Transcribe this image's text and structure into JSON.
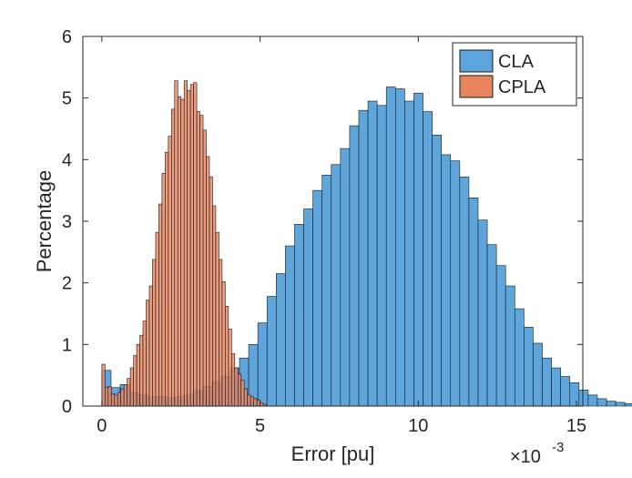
{
  "chart_data": {
    "type": "bar",
    "title": "",
    "xlabel": "Error [pu]",
    "ylabel": "Percentage",
    "x_exponent_label": "×10",
    "x_exponent_power": "-3",
    "xlim": [
      -0.6,
      15.2
    ],
    "ylim": [
      0,
      6
    ],
    "xticks": [
      0,
      5,
      10,
      15
    ],
    "yticks": [
      0,
      1,
      2,
      3,
      4,
      5,
      6
    ],
    "grid": false,
    "legend_position": "top-right",
    "series": [
      {
        "name": "CLA",
        "color": "#0072BD",
        "fill": "#5DA5DA",
        "bin_width": 0.29,
        "start": 0,
        "values": [
          0.58,
          0.3,
          0.35,
          0.22,
          0.18,
          0.15,
          0.16,
          0.14,
          0.15,
          0.18,
          0.25,
          0.32,
          0.4,
          0.48,
          0.62,
          0.78,
          1.0,
          1.35,
          1.78,
          2.15,
          2.6,
          2.95,
          3.2,
          3.5,
          3.75,
          3.92,
          4.18,
          4.55,
          4.8,
          4.95,
          4.88,
          5.18,
          5.15,
          4.95,
          5.08,
          4.78,
          4.4,
          4.08,
          3.98,
          3.72,
          3.38,
          3.02,
          2.62,
          2.28,
          1.95,
          1.58,
          1.28,
          1.02,
          0.78,
          0.62,
          0.48,
          0.38,
          0.26,
          0.18,
          0.12,
          0.08,
          0.06,
          0.04,
          0.03,
          0.03
        ]
      },
      {
        "name": "CPLA",
        "color": "#D95319",
        "fill": "#E8855F",
        "bin_width": 0.1,
        "start": 0,
        "values": [
          0.68,
          0.3,
          0.32,
          0.2,
          0.18,
          0.22,
          0.28,
          0.35,
          0.45,
          0.62,
          0.82,
          1.0,
          1.15,
          1.38,
          1.72,
          1.95,
          2.38,
          2.82,
          3.28,
          3.78,
          4.12,
          4.38,
          4.82,
          5.28,
          5.02,
          4.98,
          5.28,
          5.12,
          5.22,
          5.25,
          4.78,
          4.72,
          4.48,
          4.05,
          3.72,
          3.25,
          2.82,
          2.38,
          2.02,
          1.62,
          1.25,
          0.85,
          0.62,
          0.52,
          0.42,
          0.28,
          0.18,
          0.15,
          0.12,
          0.1,
          0.05,
          0.03
        ]
      }
    ]
  }
}
